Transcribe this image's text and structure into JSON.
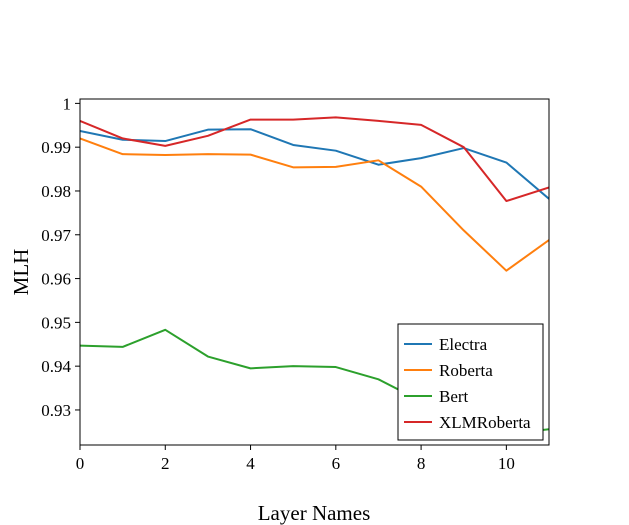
{
  "chart_data": {
    "type": "line",
    "title": "",
    "xlabel": "Layer Names",
    "ylabel": "MLH",
    "xlim": [
      0,
      11
    ],
    "ylim": [
      0.922,
      1.001
    ],
    "x_ticks": [
      "0",
      "2",
      "4",
      "6",
      "8",
      "10"
    ],
    "y_ticks": [
      "0.93",
      "0.94",
      "0.95",
      "0.96",
      "0.97",
      "0.98",
      "0.99",
      "1"
    ],
    "grid": false,
    "legend_position": "bottom-right",
    "x": [
      0,
      1,
      2,
      3,
      4,
      5,
      6,
      7,
      8,
      9,
      10,
      11
    ],
    "series": [
      {
        "name": "Electra",
        "color": "#1f77b4",
        "values": [
          0.9937,
          0.9917,
          0.9914,
          0.994,
          0.9941,
          0.9905,
          0.9892,
          0.986,
          0.9875,
          0.9898,
          0.9865,
          0.9782
        ]
      },
      {
        "name": "Roberta",
        "color": "#ff7f0e",
        "values": [
          0.992,
          0.9884,
          0.9882,
          0.9884,
          0.9883,
          0.9854,
          0.9855,
          0.987,
          0.981,
          0.971,
          0.9618,
          0.9688
        ]
      },
      {
        "name": "Bert",
        "color": "#2ca02c",
        "values": [
          0.9447,
          0.9444,
          0.9483,
          0.9422,
          0.9395,
          0.94,
          0.9398,
          0.937,
          0.932,
          0.927,
          0.9245,
          0.9256
        ]
      },
      {
        "name": "XLMRoberta",
        "color": "#d62728",
        "values": [
          0.996,
          0.992,
          0.9903,
          0.9926,
          0.9963,
          0.9963,
          0.9968,
          0.996,
          0.9951,
          0.99,
          0.9777,
          0.9808
        ]
      }
    ]
  }
}
